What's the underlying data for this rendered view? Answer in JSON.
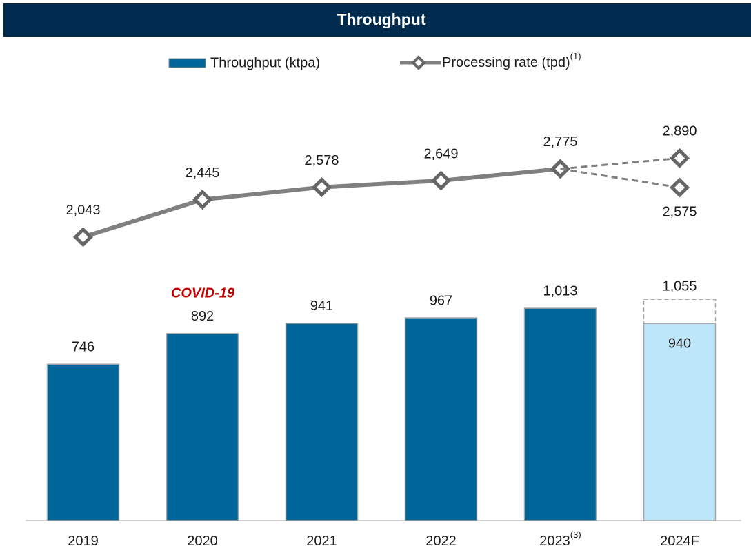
{
  "chart_data": {
    "type": "bar_line",
    "title": "Throughput",
    "annotation": "COVID-19",
    "categories": [
      "2019",
      "2020",
      "2021",
      "2022",
      "2023",
      "2024F"
    ],
    "category_superscripts": [
      null,
      null,
      null,
      null,
      "(3)",
      null
    ],
    "ylim": [
      0,
      2000
    ],
    "y2lim": [
      -1000,
      3500
    ],
    "series": [
      {
        "name": "Throughput (ktpa)",
        "type": "bar",
        "color": "#006699",
        "point_colors": [
          "#006699",
          "#006699",
          "#006699",
          "#006699",
          "#006699",
          "#bde6f8"
        ],
        "values": [
          746,
          892,
          941,
          967,
          1013,
          940
        ],
        "value_labels": [
          "746",
          "892",
          "941",
          "967",
          "1,013",
          "940"
        ]
      },
      {
        "name": "Processing rate (tpd)",
        "name_superscript": "(1)",
        "type": "line",
        "axis": "y2",
        "color": "#808080",
        "marker_edge": "#666666",
        "values": [
          2043,
          2445,
          2578,
          2649,
          2775,
          null
        ],
        "value_labels": [
          "2,043",
          "2,445",
          "2,578",
          "2,649",
          "2,775",
          null
        ]
      },
      {
        "type": "bar_range",
        "color": "#a6a6a6",
        "values": [
          null,
          null,
          null,
          null,
          null,
          1055
        ],
        "value_labels": [
          null,
          null,
          null,
          null,
          null,
          "1,055"
        ]
      },
      {
        "type": "line_forecast",
        "axis": "y2",
        "color": "#808080",
        "values": [
          null,
          null,
          null,
          null,
          null,
          2890
        ],
        "value_labels": [
          null,
          null,
          null,
          null,
          null,
          "2,890"
        ]
      },
      {
        "type": "line_forecast",
        "axis": "y2",
        "color": "#808080",
        "label_position": "below",
        "values": [
          null,
          null,
          null,
          null,
          null,
          2575
        ],
        "value_labels": [
          null,
          null,
          null,
          null,
          null,
          "2,575"
        ]
      }
    ]
  }
}
